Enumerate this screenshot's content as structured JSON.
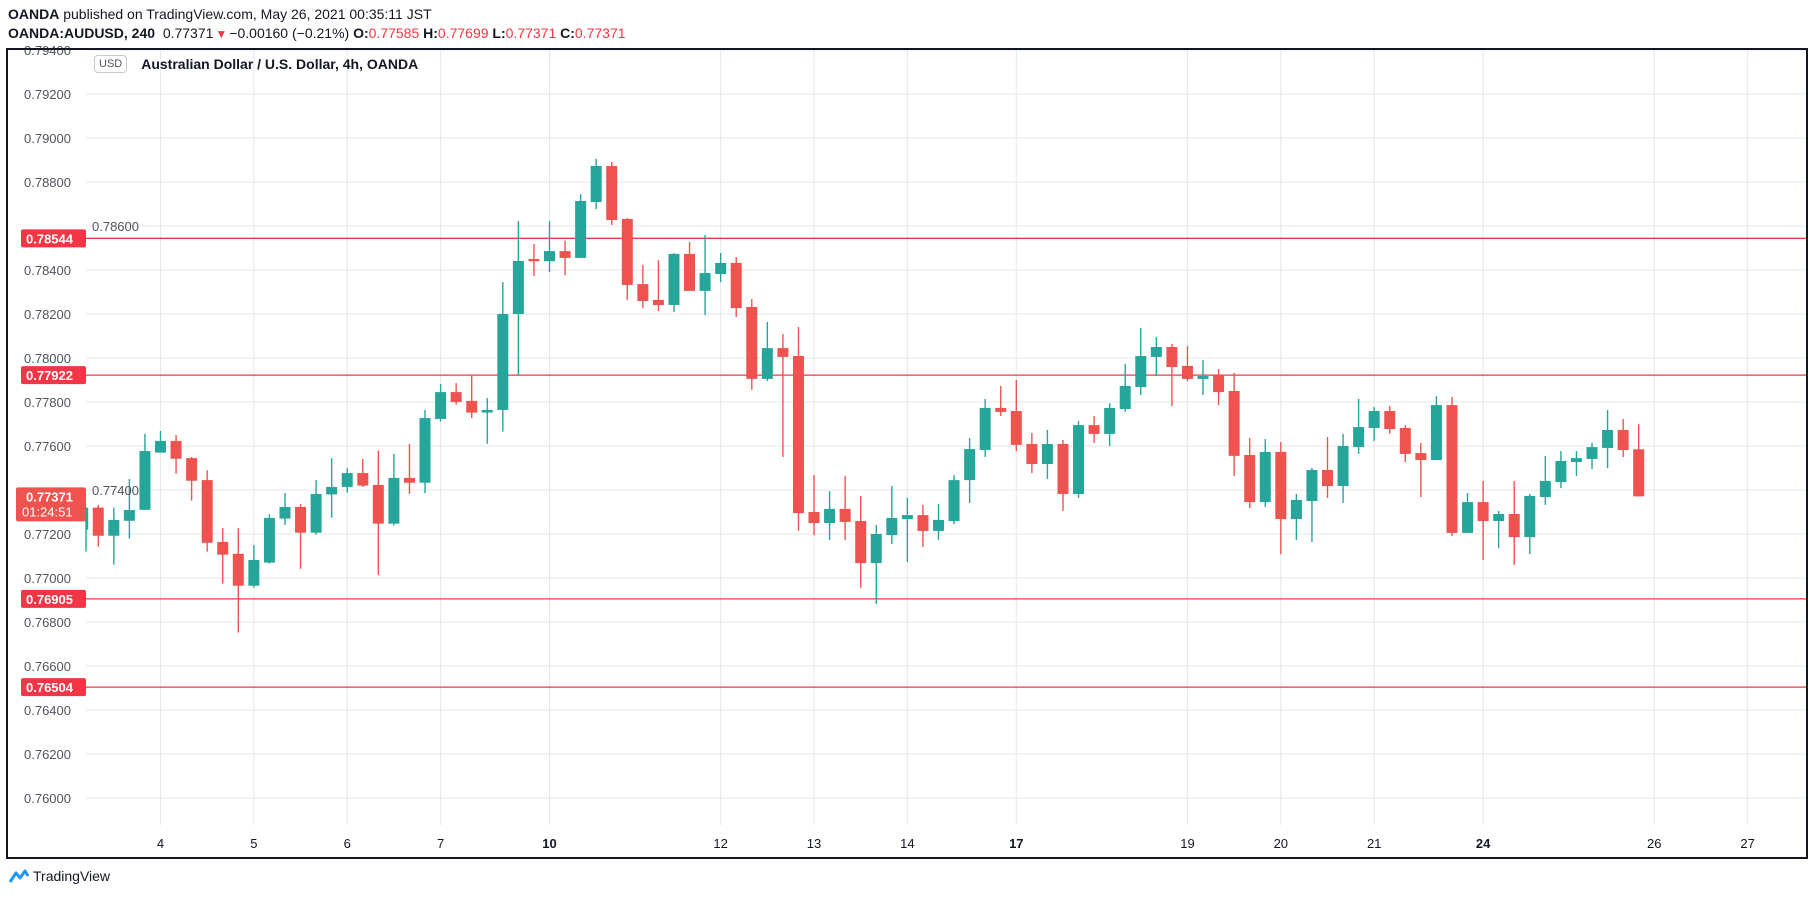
{
  "header": {
    "publisher": "OANDA",
    "published_text": "published on TradingView.com, May 26, 2021 00:35:11 JST",
    "symbol": "OANDA:AUDUSD, 240",
    "last": "0.77371",
    "change": "−0.00160 (−0.21%)",
    "change_direction_icon": "triangle-down",
    "o_label": "O:",
    "o": "0.77585",
    "h_label": "H:",
    "h": "0.77699",
    "l_label": "L:",
    "l": "0.77371",
    "c_label": "C:",
    "c": "0.77371"
  },
  "legend": {
    "currency": "USD",
    "title": "Australian Dollar / U.S. Dollar, 4h, OANDA"
  },
  "footer": {
    "brand": "TradingView"
  },
  "colors": {
    "up": "#26a69a",
    "down": "#ef5350",
    "level": "#f23645",
    "grid": "#e6e7eb"
  },
  "chart_data": {
    "type": "candlestick",
    "title": "Australian Dollar / U.S. Dollar, 4h, OANDA",
    "ylim": [
      0.7585,
      0.795
    ],
    "grid": true,
    "y_ticks": [
      "0.76000",
      "0.76200",
      "0.76400",
      "0.76600",
      "0.76800",
      "0.77000",
      "0.77200",
      "0.77400",
      "0.77600",
      "0.77800",
      "0.78000",
      "0.78200",
      "0.78400",
      "0.78600",
      "0.78800",
      "0.79000",
      "0.79200",
      "0.79400"
    ],
    "x_ticks": [
      {
        "label": "4",
        "bold": false
      },
      {
        "label": "5",
        "bold": false
      },
      {
        "label": "6",
        "bold": false
      },
      {
        "label": "7",
        "bold": false
      },
      {
        "label": "10",
        "bold": true
      },
      {
        "label": "12",
        "bold": false
      },
      {
        "label": "13",
        "bold": false
      },
      {
        "label": "14",
        "bold": false
      },
      {
        "label": "17",
        "bold": true
      },
      {
        "label": "19",
        "bold": false
      },
      {
        "label": "20",
        "bold": false
      },
      {
        "label": "21",
        "bold": false
      },
      {
        "label": "24",
        "bold": true
      },
      {
        "label": "26",
        "bold": false
      },
      {
        "label": "27",
        "bold": false
      }
    ],
    "levels": [
      "0.78544",
      "0.77922",
      "0.76905",
      "0.76504"
    ],
    "current_price": {
      "price": "0.77371",
      "countdown": "01:24:51"
    },
    "ohlc_fields": [
      "open",
      "high",
      "low",
      "close"
    ],
    "candles": [
      [
        0.7722,
        0.7732,
        0.7712,
        0.7732
      ],
      [
        0.7732,
        0.77332,
        0.77142,
        0.77192
      ],
      [
        0.77192,
        0.7732,
        0.77061,
        0.77264
      ],
      [
        0.7726,
        0.7745,
        0.77179,
        0.77309
      ],
      [
        0.7731,
        0.77655,
        0.7731,
        0.77577
      ],
      [
        0.7757,
        0.77668,
        0.7757,
        0.77623
      ],
      [
        0.77623,
        0.7765,
        0.77474,
        0.77542
      ],
      [
        0.77545,
        0.7755,
        0.77352,
        0.77442
      ],
      [
        0.77445,
        0.7749,
        0.7712,
        0.7716
      ],
      [
        0.77164,
        0.77227,
        0.76974,
        0.77106
      ],
      [
        0.7711,
        0.77227,
        0.76752,
        0.76965
      ],
      [
        0.76965,
        0.7715,
        0.76956,
        0.77082
      ],
      [
        0.7707,
        0.7729,
        0.77065,
        0.77273
      ],
      [
        0.7727,
        0.77386,
        0.77241,
        0.77323
      ],
      [
        0.77323,
        0.77336,
        0.77042,
        0.77206
      ],
      [
        0.77206,
        0.77445,
        0.77197,
        0.77382
      ],
      [
        0.7738,
        0.77545,
        0.77274,
        0.77414
      ],
      [
        0.77414,
        0.775,
        0.77388,
        0.77477
      ],
      [
        0.77477,
        0.77541,
        0.77414,
        0.7742
      ],
      [
        0.77423,
        0.77579,
        0.77014,
        0.77247
      ],
      [
        0.77247,
        0.77564,
        0.77238,
        0.77455
      ],
      [
        0.77455,
        0.77609,
        0.77382,
        0.77433
      ],
      [
        0.77433,
        0.77764,
        0.77386,
        0.77727
      ],
      [
        0.77723,
        0.77882,
        0.77711,
        0.77845
      ],
      [
        0.77845,
        0.77886,
        0.77788,
        0.778
      ],
      [
        0.77805,
        0.77921,
        0.77727,
        0.77752
      ],
      [
        0.77752,
        0.77818,
        0.7761,
        0.77764
      ],
      [
        0.77764,
        0.78345,
        0.77665,
        0.782
      ],
      [
        0.782,
        0.78623,
        0.77924,
        0.78441
      ],
      [
        0.7845,
        0.78518,
        0.78373,
        0.7844
      ],
      [
        0.7844,
        0.78623,
        0.78391,
        0.78486
      ],
      [
        0.78486,
        0.78533,
        0.78377,
        0.78455
      ],
      [
        0.78455,
        0.78745,
        0.78455,
        0.78714
      ],
      [
        0.78709,
        0.78905,
        0.78677,
        0.78873
      ],
      [
        0.78873,
        0.78891,
        0.78605,
        0.78627
      ],
      [
        0.78632,
        0.78636,
        0.78264,
        0.78332
      ],
      [
        0.78336,
        0.78423,
        0.78227,
        0.78259
      ],
      [
        0.78264,
        0.78445,
        0.78214,
        0.78241
      ],
      [
        0.78241,
        0.78477,
        0.78209,
        0.78473
      ],
      [
        0.78473,
        0.78527,
        0.78305,
        0.78305
      ],
      [
        0.78305,
        0.78559,
        0.78195,
        0.78386
      ],
      [
        0.78382,
        0.78477,
        0.78345,
        0.78432
      ],
      [
        0.78432,
        0.78459,
        0.78186,
        0.78227
      ],
      [
        0.78232,
        0.78268,
        0.77855,
        0.77905
      ],
      [
        0.77905,
        0.78164,
        0.77895,
        0.78045
      ],
      [
        0.78045,
        0.78109,
        0.7755,
        0.78005
      ],
      [
        0.78009,
        0.78141,
        0.77214,
        0.77295
      ],
      [
        0.773,
        0.77468,
        0.77195,
        0.7725
      ],
      [
        0.7725,
        0.77395,
        0.77173,
        0.77314
      ],
      [
        0.77314,
        0.77464,
        0.77173,
        0.77255
      ],
      [
        0.77259,
        0.77373,
        0.76955,
        0.77068
      ],
      [
        0.77068,
        0.77241,
        0.76882,
        0.772
      ],
      [
        0.77195,
        0.77418,
        0.77155,
        0.77273
      ],
      [
        0.77268,
        0.77364,
        0.77073,
        0.77286
      ],
      [
        0.77286,
        0.77332,
        0.77141,
        0.77214
      ],
      [
        0.77214,
        0.77336,
        0.77173,
        0.77264
      ],
      [
        0.77259,
        0.77468,
        0.77245,
        0.77445
      ],
      [
        0.77445,
        0.77636,
        0.77341,
        0.77586
      ],
      [
        0.77582,
        0.77814,
        0.7755,
        0.77773
      ],
      [
        0.77773,
        0.77873,
        0.77736,
        0.77755
      ],
      [
        0.77759,
        0.779,
        0.77577,
        0.77605
      ],
      [
        0.77609,
        0.77659,
        0.77477,
        0.77518
      ],
      [
        0.77518,
        0.77673,
        0.7745,
        0.77609
      ],
      [
        0.77609,
        0.77627,
        0.77305,
        0.77382
      ],
      [
        0.77382,
        0.77714,
        0.77364,
        0.77695
      ],
      [
        0.77695,
        0.77736,
        0.77614,
        0.77655
      ],
      [
        0.77655,
        0.77795,
        0.776,
        0.77773
      ],
      [
        0.77768,
        0.77973,
        0.77755,
        0.77873
      ],
      [
        0.77868,
        0.78136,
        0.77832,
        0.78009
      ],
      [
        0.78005,
        0.78095,
        0.77918,
        0.7805
      ],
      [
        0.7805,
        0.78064,
        0.77782,
        0.77959
      ],
      [
        0.77964,
        0.78055,
        0.77895,
        0.77905
      ],
      [
        0.77905,
        0.77991,
        0.77832,
        0.77918
      ],
      [
        0.77923,
        0.7795,
        0.77786,
        0.77845
      ],
      [
        0.7785,
        0.77932,
        0.77464,
        0.77555
      ],
      [
        0.77559,
        0.77636,
        0.77318,
        0.77345
      ],
      [
        0.77345,
        0.77632,
        0.77323,
        0.77573
      ],
      [
        0.77573,
        0.77618,
        0.77108,
        0.77268
      ],
      [
        0.77268,
        0.77382,
        0.77173,
        0.77355
      ],
      [
        0.7735,
        0.775,
        0.77164,
        0.77491
      ],
      [
        0.77491,
        0.77641,
        0.77364,
        0.77418
      ],
      [
        0.77418,
        0.77655,
        0.77341,
        0.776
      ],
      [
        0.77595,
        0.77814,
        0.77564,
        0.77686
      ],
      [
        0.77682,
        0.77777,
        0.77623,
        0.77759
      ],
      [
        0.77759,
        0.77782,
        0.77655,
        0.77677
      ],
      [
        0.77682,
        0.77695,
        0.77527,
        0.77564
      ],
      [
        0.77568,
        0.77614,
        0.77368,
        0.77536
      ],
      [
        0.77536,
        0.77827,
        0.77536,
        0.77786
      ],
      [
        0.77786,
        0.77823,
        0.77191,
        0.77205
      ],
      [
        0.77205,
        0.77386,
        0.77205,
        0.77345
      ],
      [
        0.77345,
        0.77441,
        0.77082,
        0.77259
      ],
      [
        0.77259,
        0.77305,
        0.77136,
        0.77291
      ],
      [
        0.77291,
        0.77441,
        0.77059,
        0.77186
      ],
      [
        0.77186,
        0.77382,
        0.77109,
        0.77373
      ],
      [
        0.77368,
        0.77555,
        0.77332,
        0.77441
      ],
      [
        0.77436,
        0.77577,
        0.77409,
        0.77532
      ],
      [
        0.77527,
        0.77577,
        0.77464,
        0.77545
      ],
      [
        0.77541,
        0.77614,
        0.77495,
        0.77595
      ],
      [
        0.77591,
        0.77764,
        0.775,
        0.77673
      ],
      [
        0.77673,
        0.77723,
        0.7755,
        0.77582
      ],
      [
        0.77585,
        0.77699,
        0.77371,
        0.77371
      ]
    ]
  }
}
